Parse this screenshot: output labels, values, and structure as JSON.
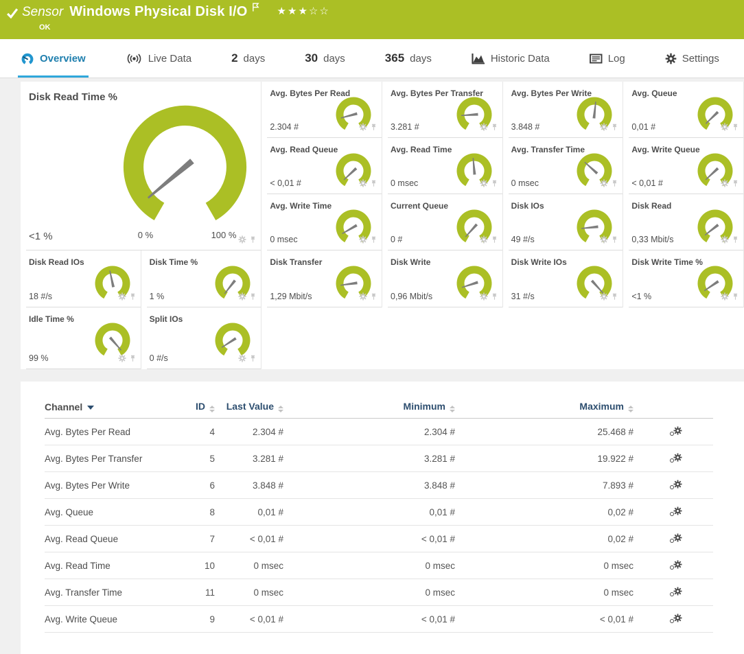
{
  "header": {
    "type_label": "Sensor",
    "title": "Windows Physical Disk I/O",
    "status": "OK",
    "rating": {
      "filled": 3,
      "empty": 2
    }
  },
  "tabs": [
    {
      "id": "overview",
      "icon": "gauge-icon",
      "label": "Overview",
      "active": true
    },
    {
      "id": "live-data",
      "icon": "broadcast-icon",
      "label": "Live Data",
      "active": false
    },
    {
      "id": "2-days",
      "num": "2",
      "label": "days",
      "active": false
    },
    {
      "id": "30-days",
      "num": "30",
      "label": "days",
      "active": false
    },
    {
      "id": "365-days",
      "num": "365",
      "label": "days",
      "active": false
    },
    {
      "id": "historic-data",
      "icon": "area-chart-icon",
      "label": "Historic Data",
      "active": false
    },
    {
      "id": "log",
      "icon": "log-icon",
      "label": "Log",
      "active": false
    },
    {
      "id": "settings",
      "icon": "gear-icon",
      "label": "Settings",
      "active": false
    }
  ],
  "featured_gauge": {
    "title": "Disk Read Time %",
    "value": "<1 %",
    "scale_min": "0 %",
    "scale_max": "100 %",
    "needle_deg": 140
  },
  "small_gauges": [
    {
      "title": "Avg. Bytes Per Read",
      "value": "2.304 #",
      "needle_deg": 165
    },
    {
      "title": "Avg. Bytes Per Transfer",
      "value": "3.281 #",
      "needle_deg": 176
    },
    {
      "title": "Avg. Bytes Per Write",
      "value": "3.848 #",
      "needle_deg": 276
    },
    {
      "title": "Avg. Queue",
      "value": "0,01 #",
      "needle_deg": 136
    },
    {
      "title": "Avg. Read Queue",
      "value": "< 0,01 #",
      "needle_deg": 137
    },
    {
      "title": "Avg. Read Time",
      "value": "0 msec",
      "needle_deg": 265
    },
    {
      "title": "Avg. Transfer Time",
      "value": "0 msec",
      "needle_deg": 222
    },
    {
      "title": "Avg. Write Queue",
      "value": "< 0,01 #",
      "needle_deg": 137
    },
    {
      "title": "Avg. Write Time",
      "value": "0 msec",
      "needle_deg": 150
    },
    {
      "title": "Current Queue",
      "value": "0 #",
      "needle_deg": 132
    },
    {
      "title": "Disk IOs",
      "value": "49 #/s",
      "needle_deg": 174
    },
    {
      "title": "Disk Read",
      "value": "0,33 Mbit/s",
      "needle_deg": 142
    },
    {
      "title": "Disk Read IOs",
      "value": "18 #/s",
      "needle_deg": 258
    },
    {
      "title": "Disk Time %",
      "value": "1 %",
      "needle_deg": 128
    },
    {
      "title": "Disk Transfer",
      "value": "1,29 Mbit/s",
      "needle_deg": 172
    },
    {
      "title": "Disk Write",
      "value": "0,96 Mbit/s",
      "needle_deg": 162
    },
    {
      "title": "Disk Write IOs",
      "value": "31 #/s",
      "needle_deg": 48
    },
    {
      "title": "Disk Write Time %",
      "value": "<1 %",
      "needle_deg": 146
    },
    {
      "title": "Idle Time %",
      "value": "99 %",
      "needle_deg": 49
    },
    {
      "title": "Split IOs",
      "value": "0 #/s",
      "needle_deg": 147
    }
  ],
  "table": {
    "columns": [
      {
        "label": "Channel",
        "sort": "active"
      },
      {
        "label": "ID",
        "sort": "both"
      },
      {
        "label": "Last Value",
        "sort": "both"
      },
      {
        "label": "Minimum",
        "sort": "both"
      },
      {
        "label": "Maximum",
        "sort": "both"
      }
    ],
    "rows": [
      {
        "channel": "Avg. Bytes Per Read",
        "id": "4",
        "last": "2.304 #",
        "min": "2.304 #",
        "max": "25.468 #"
      },
      {
        "channel": "Avg. Bytes Per Transfer",
        "id": "5",
        "last": "3.281 #",
        "min": "3.281 #",
        "max": "19.922 #"
      },
      {
        "channel": "Avg. Bytes Per Write",
        "id": "6",
        "last": "3.848 #",
        "min": "3.848 #",
        "max": "7.893 #"
      },
      {
        "channel": "Avg. Queue",
        "id": "8",
        "last": "0,01 #",
        "min": "0,01 #",
        "max": "0,02 #"
      },
      {
        "channel": "Avg. Read Queue",
        "id": "7",
        "last": "< 0,01 #",
        "min": "< 0,01 #",
        "max": "0,02 #"
      },
      {
        "channel": "Avg. Read Time",
        "id": "10",
        "last": "0 msec",
        "min": "0 msec",
        "max": "0 msec"
      },
      {
        "channel": "Avg. Transfer Time",
        "id": "11",
        "last": "0 msec",
        "min": "0 msec",
        "max": "0 msec"
      },
      {
        "channel": "Avg. Write Queue",
        "id": "9",
        "last": "< 0,01 #",
        "min": "< 0,01 #",
        "max": "< 0,01 #"
      }
    ]
  },
  "colors": {
    "lime": "#ABBF25",
    "accent_blue": "#2FA7DB",
    "tab_icon": "#3F3F3F",
    "table_header_text": "#2D4E6F",
    "needle": "#7D7D7D",
    "card_icon_gray": "#C9C9C9",
    "row_gear": "#4A4A4A"
  }
}
